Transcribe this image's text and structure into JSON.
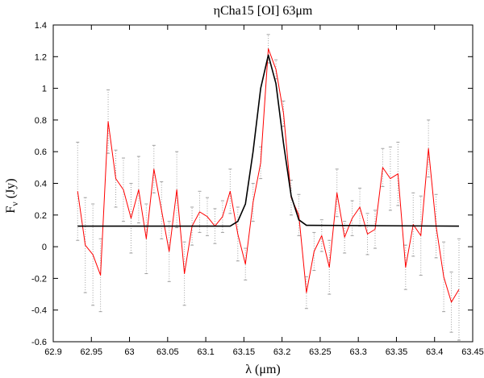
{
  "chart_data": {
    "type": "line",
    "title": "ηCha15 [OI] 63μm",
    "xlabel": "λ (μm)",
    "ylabel": "F",
    "ylabel_sub": "ν",
    "ylabel_unit": "(Jy)",
    "xlim": [
      62.9,
      63.45
    ],
    "ylim": [
      -0.6,
      1.4
    ],
    "xticks": [
      62.9,
      62.95,
      63.0,
      63.05,
      63.1,
      63.15,
      63.2,
      63.25,
      63.3,
      63.35,
      63.4,
      63.45
    ],
    "xtick_labels": [
      "62.9",
      "62.95",
      "63",
      "63.05",
      "63.1",
      "63.15",
      "63.2",
      "63.25",
      "63.3",
      "63.35",
      "63.4",
      "63.45"
    ],
    "yticks": [
      -0.6,
      -0.4,
      -0.2,
      0,
      0.2,
      0.4,
      0.6,
      0.8,
      1.0,
      1.2,
      1.4
    ],
    "ytick_labels": [
      "-0.6",
      "-0.4",
      "-0.2",
      "0",
      "0.2",
      "0.4",
      "0.6",
      "0.8",
      "1",
      "1.2",
      "1.4"
    ],
    "grid": false,
    "legend": "none",
    "series": [
      {
        "color": "#ff0000",
        "style": "line-with-errorbars",
        "x": [
          62.932,
          62.942,
          62.952,
          62.962,
          62.972,
          62.982,
          62.992,
          63.002,
          63.012,
          63.022,
          63.032,
          63.042,
          63.052,
          63.062,
          63.072,
          63.082,
          63.092,
          63.102,
          63.112,
          63.122,
          63.132,
          63.142,
          63.152,
          63.162,
          63.172,
          63.182,
          63.192,
          63.202,
          63.212,
          63.222,
          63.232,
          63.242,
          63.252,
          63.262,
          63.272,
          63.282,
          63.292,
          63.302,
          63.312,
          63.322,
          63.332,
          63.342,
          63.352,
          63.362,
          63.372,
          63.382,
          63.392,
          63.402,
          63.412,
          63.422,
          63.432
        ],
        "y": [
          0.35,
          0.01,
          -0.05,
          -0.18,
          0.79,
          0.43,
          0.36,
          0.18,
          0.36,
          0.05,
          0.49,
          0.23,
          -0.03,
          0.36,
          -0.17,
          0.13,
          0.22,
          0.19,
          0.13,
          0.19,
          0.35,
          0.08,
          -0.11,
          0.28,
          0.53,
          1.25,
          1.12,
          0.84,
          0.31,
          0.2,
          -0.29,
          -0.03,
          0.07,
          -0.13,
          0.34,
          0.06,
          0.18,
          0.25,
          0.08,
          0.11,
          0.5,
          0.43,
          0.46,
          -0.13,
          0.14,
          0.07,
          0.62,
          0.13,
          -0.19,
          -0.35,
          -0.27
        ],
        "err": [
          0.31,
          0.3,
          0.32,
          0.23,
          0.2,
          0.18,
          0.2,
          0.22,
          0.21,
          0.22,
          0.15,
          0.18,
          0.19,
          0.24,
          0.2,
          0.12,
          0.13,
          0.12,
          0.11,
          0.1,
          0.14,
          0.17,
          0.1,
          0.12,
          0.1,
          0.09,
          0.06,
          0.08,
          0.11,
          0.13,
          0.1,
          0.12,
          0.1,
          0.17,
          0.15,
          0.1,
          0.11,
          0.12,
          0.13,
          0.12,
          0.12,
          0.2,
          0.2,
          0.14,
          0.2,
          0.25,
          0.18,
          0.2,
          0.22,
          0.19,
          0.32
        ]
      },
      {
        "color": "#000000",
        "style": "line",
        "x": [
          62.932,
          63.132,
          63.142,
          63.152,
          63.162,
          63.172,
          63.182,
          63.192,
          63.202,
          63.212,
          63.222,
          63.232,
          63.432
        ],
        "y": [
          0.13,
          0.13,
          0.16,
          0.27,
          0.6,
          1.0,
          1.21,
          1.03,
          0.65,
          0.32,
          0.17,
          0.135,
          0.13
        ]
      }
    ]
  }
}
